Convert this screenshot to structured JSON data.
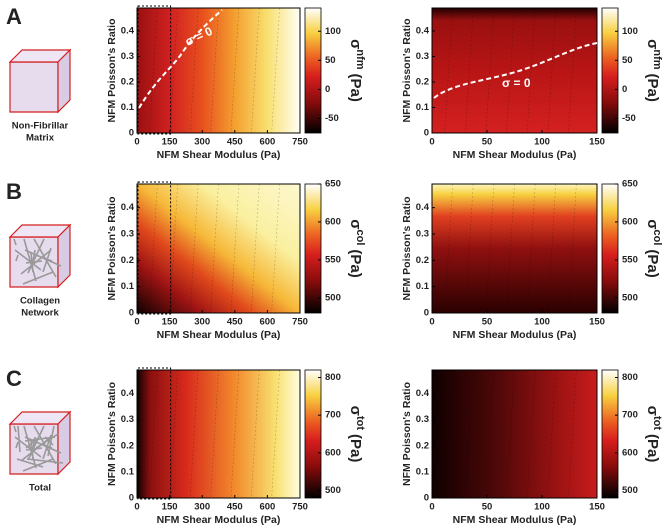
{
  "rows": [
    {
      "letter": "A",
      "caption": [
        "Non-Fibrillar",
        "Matrix"
      ]
    },
    {
      "letter": "B",
      "caption": [
        "Collagen",
        "Network"
      ]
    },
    {
      "letter": "C",
      "caption": [
        "Total"
      ]
    }
  ],
  "chart_data": [
    {
      "type": "contour",
      "xlabel": "NFM Shear Modulus (Pa)",
      "ylabel": "NFM Poisson's Ratio",
      "xlim": [
        0,
        750
      ],
      "xticks": [
        0,
        150,
        300,
        450,
        600,
        750
      ],
      "ylim": [
        0,
        0.49
      ],
      "yticks": [
        0,
        0.1,
        0.2,
        0.3,
        0.4
      ],
      "colorbar": {
        "label": [
          "σ",
          "nfm",
          "(Pa)"
        ],
        "lim": [
          -75,
          140
        ],
        "ticks": [
          -50,
          0,
          50,
          100
        ]
      },
      "annotation": "σ = 0"
    },
    {
      "type": "contour",
      "xlabel": "NFM Shear Modulus (Pa)",
      "ylabel": "NFM Poisson's Ratio",
      "xlim": [
        0,
        150
      ],
      "xticks": [
        0,
        50,
        100,
        150
      ],
      "ylim": [
        0,
        0.49
      ],
      "yticks": [
        0,
        0.1,
        0.2,
        0.3,
        0.4
      ],
      "colorbar": {
        "label": [
          "σ",
          "nfm",
          "(Pa)"
        ],
        "lim": [
          -75,
          140
        ],
        "ticks": [
          -50,
          0,
          50,
          100
        ]
      },
      "annotation": "σ = 0"
    },
    {
      "type": "contour",
      "xlabel": "NFM Shear Modulus (Pa)",
      "ylabel": "NFM Poisson's Ratio",
      "xlim": [
        0,
        750
      ],
      "xticks": [
        0,
        150,
        300,
        450,
        600,
        750
      ],
      "ylim": [
        0,
        0.49
      ],
      "yticks": [
        0,
        0.1,
        0.2,
        0.3,
        0.4
      ],
      "colorbar": {
        "label": [
          "σ",
          "col",
          "(Pa)"
        ],
        "lim": [
          480,
          650
        ],
        "ticks": [
          500,
          550,
          600,
          650
        ]
      }
    },
    {
      "type": "contour",
      "xlabel": "NFM Shear Modulus (Pa)",
      "ylabel": "NFM Poisson's Ratio",
      "xlim": [
        0,
        150
      ],
      "xticks": [
        0,
        50,
        100,
        150
      ],
      "ylim": [
        0,
        0.49
      ],
      "yticks": [
        0,
        0.1,
        0.2,
        0.3,
        0.4
      ],
      "colorbar": {
        "label": [
          "σ",
          "col",
          "(Pa)"
        ],
        "lim": [
          480,
          650
        ],
        "ticks": [
          500,
          550,
          600,
          650
        ]
      }
    },
    {
      "type": "contour",
      "xlabel": "NFM Shear Modulus (Pa)",
      "ylabel": "NFM Poisson's Ratio",
      "xlim": [
        0,
        750
      ],
      "xticks": [
        0,
        150,
        300,
        450,
        600,
        750
      ],
      "ylim": [
        0,
        0.49
      ],
      "yticks": [
        0,
        0.1,
        0.2,
        0.3,
        0.4
      ],
      "colorbar": {
        "label": [
          "σ",
          "tot",
          "(Pa)"
        ],
        "lim": [
          480,
          820
        ],
        "ticks": [
          500,
          600,
          700,
          800
        ]
      }
    },
    {
      "type": "contour",
      "xlabel": "NFM Shear Modulus (Pa)",
      "ylabel": "NFM Poisson's Ratio",
      "xlim": [
        0,
        150
      ],
      "xticks": [
        0,
        50,
        100,
        150
      ],
      "ylim": [
        0,
        0.49
      ],
      "yticks": [
        0,
        0.1,
        0.2,
        0.3,
        0.4
      ],
      "colorbar": {
        "label": [
          "σ",
          "tot",
          "(Pa)"
        ],
        "lim": [
          480,
          820
        ],
        "ticks": [
          500,
          600,
          700,
          800
        ]
      }
    }
  ]
}
